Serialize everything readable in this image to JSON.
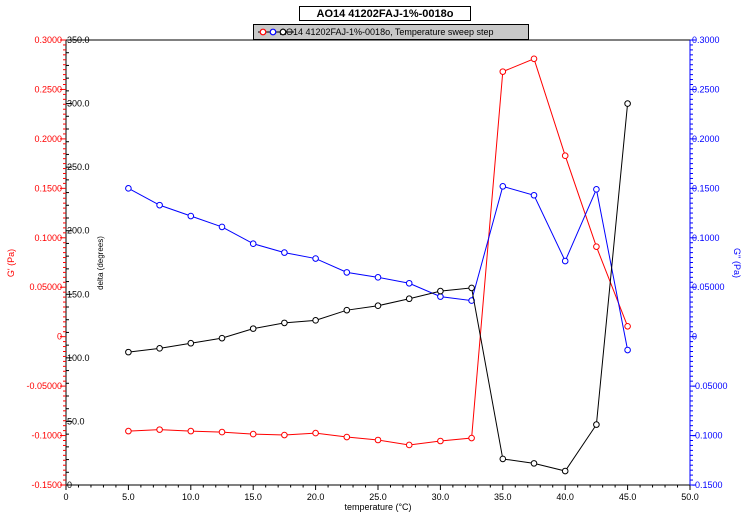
{
  "chart_data": {
    "type": "line",
    "title": "AO14 41202FAJ-1%-0018o",
    "legend": {
      "text": "AO14 41202FAJ-1%-0018o, Temperature sweep step",
      "placement": "top-center",
      "marker_colors": [
        "#ff0000",
        "#0000ff",
        "#000000"
      ]
    },
    "xlabel": "temperature (°C)",
    "xlim": [
      0,
      50
    ],
    "xticks": [
      "0",
      "5.0",
      "10.0",
      "15.0",
      "20.0",
      "25.0",
      "30.0",
      "35.0",
      "40.0",
      "45.0",
      "50.0"
    ],
    "xtick_values": [
      0,
      5,
      10,
      15,
      20,
      25,
      30,
      35,
      40,
      45,
      50
    ],
    "grid": false,
    "axes": {
      "left_outer": {
        "label": "G' (Pa)",
        "color": "#ff0000",
        "ylim": [
          -0.15,
          0.3
        ],
        "ticks": [
          "-0.1500",
          "-0.1000",
          "-0.05000",
          "0",
          "0.05000",
          "0.1000",
          "0.1500",
          "0.2000",
          "0.2500",
          "0.3000"
        ],
        "tick_values": [
          -0.15,
          -0.1,
          -0.05,
          0,
          0.05,
          0.1,
          0.15,
          0.2,
          0.25,
          0.3
        ]
      },
      "left_inner": {
        "label": "delta (degrees)",
        "color": "#000000",
        "ylim": [
          0,
          350
        ],
        "ticks": [
          "0",
          "50.0",
          "100.0",
          "150.0",
          "200.0",
          "250.0",
          "300.0",
          "350.0"
        ],
        "tick_values": [
          0,
          50,
          100,
          150,
          200,
          250,
          300,
          350
        ]
      },
      "right": {
        "label": "G'' (Pa)",
        "color": "#0000ff",
        "ylim": [
          -0.15,
          0.3
        ],
        "ticks": [
          "-0.1500",
          "-0.1000",
          "-0.05000",
          "0",
          "0.05000",
          "0.1000",
          "0.1500",
          "0.2000",
          "0.2500",
          "0.3000"
        ],
        "tick_values": [
          -0.15,
          -0.1,
          -0.05,
          0,
          0.05,
          0.1,
          0.15,
          0.2,
          0.25,
          0.3
        ]
      }
    },
    "x": [
      5,
      7.5,
      10,
      12.5,
      15,
      17.5,
      20,
      22.5,
      25,
      27.5,
      30,
      32.5,
      35,
      37.5,
      40,
      42.5,
      45
    ],
    "series": [
      {
        "axis": "left_outer",
        "color": "#ff0000",
        "values": [
          -0.0955,
          -0.094,
          -0.0955,
          -0.0965,
          -0.0985,
          -0.0995,
          -0.0975,
          -0.1015,
          -0.1045,
          -0.1095,
          -0.1055,
          -0.1025,
          0.268,
          0.281,
          0.183,
          0.091,
          0.0105
        ]
      },
      {
        "axis": "right",
        "color": "#0000ff",
        "values": [
          0.15,
          0.133,
          0.122,
          0.111,
          0.094,
          0.085,
          0.079,
          0.065,
          0.06,
          0.054,
          0.0405,
          0.0365,
          0.152,
          0.143,
          0.0765,
          0.149,
          -0.0135
        ]
      },
      {
        "axis": "left_inner",
        "color": "#000000",
        "values": [
          104.5,
          107.5,
          111.5,
          115.5,
          123.0,
          127.5,
          129.5,
          137.5,
          141.0,
          146.5,
          152.5,
          155.0,
          20.5,
          17.0,
          11.0,
          47.5,
          300.0
        ]
      }
    ]
  }
}
